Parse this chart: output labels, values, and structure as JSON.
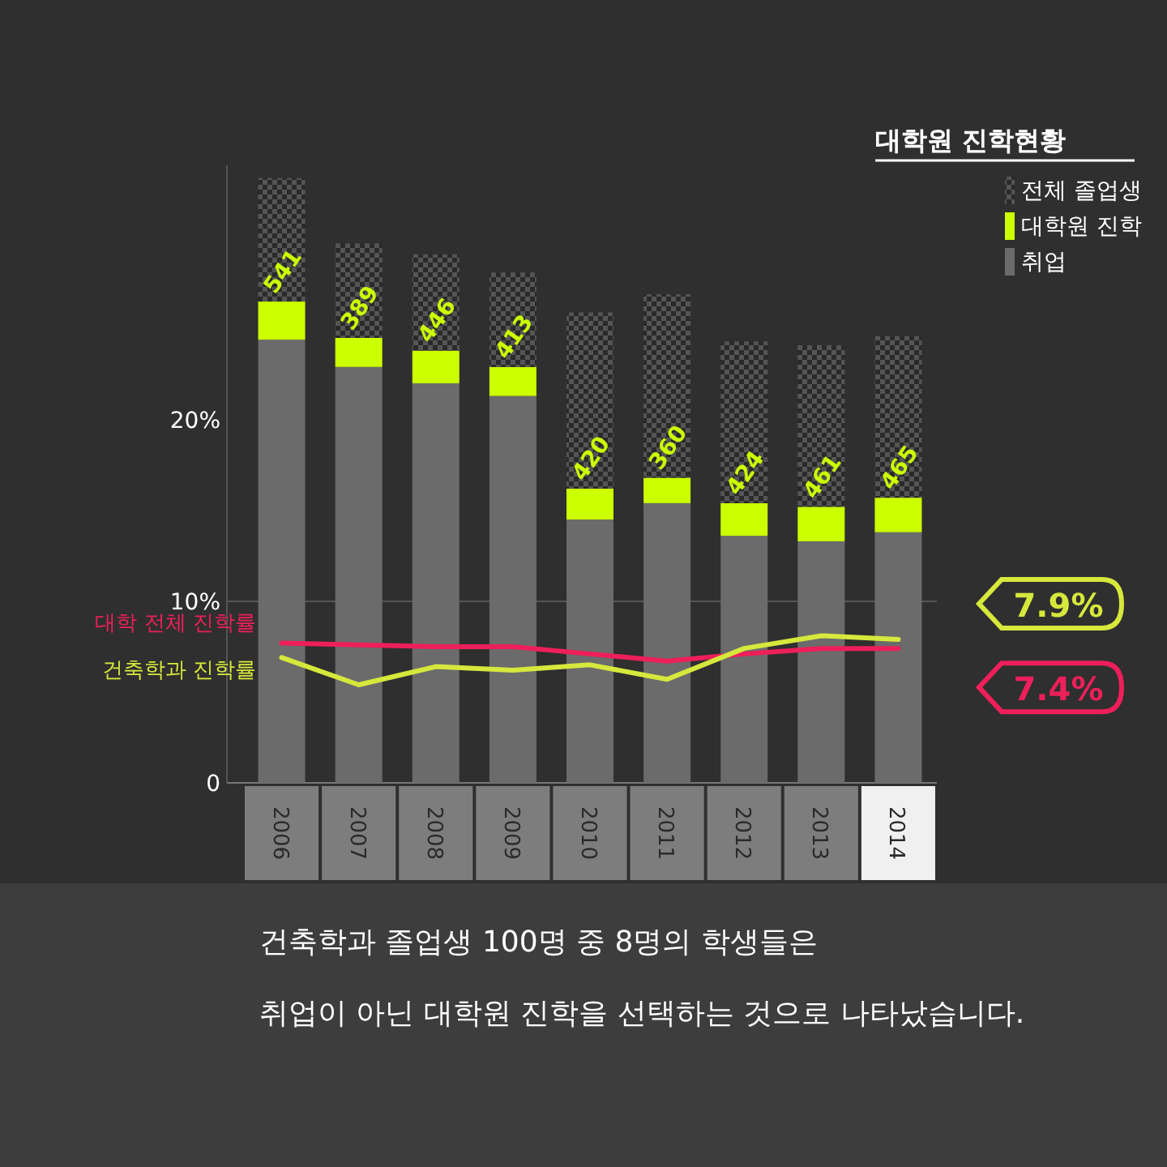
{
  "chart_data": {
    "type": "bar",
    "stacked": true,
    "legend": "top right",
    "legend_title": "대학원 진학현황",
    "categories": [
      "2006",
      "2007",
      "2008",
      "2009",
      "2010",
      "2011",
      "2012",
      "2013",
      "2014"
    ],
    "ylim": [
      0,
      34
    ],
    "yticks": [
      {
        "value": 0,
        "label": "0"
      },
      {
        "value": 10,
        "label": "10%"
      },
      {
        "value": 20,
        "label": "20%"
      }
    ],
    "series": [
      {
        "name": "취업",
        "type": "bar",
        "color": "#6b6b6b",
        "values": [
          24.4,
          22.9,
          22.0,
          21.3,
          14.5,
          15.4,
          13.6,
          13.3,
          13.8
        ]
      },
      {
        "name": "대학원 진학",
        "type": "bar",
        "color": "#ccff00",
        "values": [
          2.1,
          1.6,
          1.8,
          1.6,
          1.7,
          1.4,
          1.8,
          1.9,
          1.9
        ]
      },
      {
        "name": "전체 졸업생",
        "type": "bar",
        "color": "#555555",
        "values": [
          6.8,
          5.2,
          5.3,
          5.2,
          9.7,
          10.1,
          8.9,
          8.9,
          8.9
        ]
      },
      {
        "name": "대학 전체 진학률",
        "type": "line",
        "color": "#ee1f5a",
        "values": [
          7.7,
          7.6,
          7.5,
          7.5,
          7.1,
          6.7,
          7.1,
          7.4,
          7.4
        ]
      },
      {
        "name": "건축학과 진학률",
        "type": "line",
        "color": "#d6e83c",
        "values": [
          6.9,
          5.4,
          6.4,
          6.2,
          6.5,
          5.7,
          7.4,
          8.1,
          7.9
        ]
      }
    ],
    "ref_lines": [
      {
        "axis": "y",
        "value": 10,
        "label": null,
        "color": "#555555"
      }
    ],
    "annotations": [
      "7.9%",
      "7.4%",
      {
        "text": "541",
        "x": "2006",
        "y": 26.5
      },
      {
        "text": "389",
        "x": "2007",
        "y": 24.5
      },
      {
        "text": "446",
        "x": "2008",
        "y": 23.8
      },
      {
        "text": "413",
        "x": "2009",
        "y": 22.9
      },
      {
        "text": "420",
        "x": "2010",
        "y": 16.2
      },
      {
        "text": "360",
        "x": "2011",
        "y": 16.8
      },
      {
        "text": "424",
        "x": "2012",
        "y": 15.4
      },
      {
        "text": "461",
        "x": "2013",
        "y": 15.2
      },
      {
        "text": "465",
        "x": "2014",
        "y": 15.7
      },
      "건축학과 졸업생 100명 중 8명의 학생들은",
      "취업이 아닌 대학원 진학을 선택하는 것으로 나타났습니다."
    ]
  }
}
